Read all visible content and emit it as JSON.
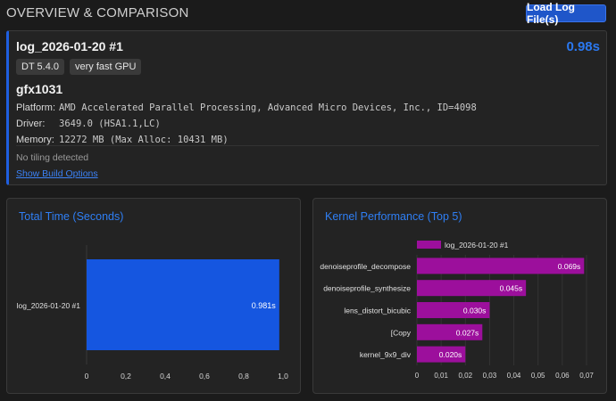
{
  "header": {
    "title": "OVERVIEW & COMPARISON",
    "load_button": "Load Log File(s)"
  },
  "overview": {
    "log_name": "log_2026-01-20 #1",
    "total_time": "0.98s",
    "badges": [
      "DT 5.4.0",
      "very fast GPU"
    ],
    "gpu": "gfx1031",
    "platform_label": "Platform:",
    "platform_value": "AMD Accelerated Parallel Processing, Advanced Micro Devices, Inc., ID=4098",
    "driver_label": "Driver:",
    "driver_value": "3649.0 (HSA1.1,LC)",
    "memory_label": "Memory:",
    "memory_value": "12272 MB (Max Alloc: 10431 MB)",
    "tiling": "No tiling detected",
    "build_link": "Show Build Options"
  },
  "colors": {
    "accent": "#2f7ff5",
    "bar_blue": "#1556e0",
    "bar_purple": "#9c0f9c"
  },
  "chart_data": [
    {
      "type": "bar",
      "orientation": "horizontal",
      "title": "Total Time (Seconds)",
      "categories": [
        "log_2026-01-20 #1"
      ],
      "values": [
        0.981
      ],
      "value_labels": [
        "0.981s"
      ],
      "xlim": [
        0,
        1.0
      ],
      "xticks": [
        "0",
        "0,2",
        "0,4",
        "0,6",
        "0,8",
        "1,0"
      ],
      "grid": false
    },
    {
      "type": "bar",
      "orientation": "horizontal",
      "title": "Kernel Performance (Top 5)",
      "legend": "log_2026-01-20 #1",
      "categories": [
        "denoiseprofile_decompose",
        "denoiseprofile_synthesize",
        "lens_distort_bicubic",
        "[Copy",
        "kernel_9x9_div"
      ],
      "values": [
        0.069,
        0.045,
        0.03,
        0.027,
        0.02
      ],
      "value_labels": [
        "0.069s",
        "0.045s",
        "0.030s",
        "0.027s",
        "0.020s"
      ],
      "xlim": [
        0,
        0.07
      ],
      "xticks": [
        "0",
        "0,01",
        "0,02",
        "0,03",
        "0,04",
        "0,05",
        "0,06",
        "0,07"
      ],
      "grid": true
    }
  ]
}
